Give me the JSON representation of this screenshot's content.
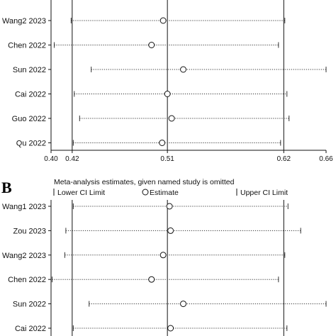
{
  "chart_data": [
    {
      "type": "scatter",
      "title": "",
      "xlabel": "",
      "ylabel": "",
      "xlim": [
        0.4,
        0.66
      ],
      "ticks": [
        "0.40",
        "0.42",
        "0.51",
        "0.62",
        "0.66"
      ],
      "ref_lines": [
        0.42,
        0.51,
        0.62
      ],
      "grid": false,
      "studies": [
        {
          "label": "Wang2 2023",
          "estimate": 0.506,
          "lower": 0.419,
          "upper": 0.621
        },
        {
          "label": "Chen 2022",
          "estimate": 0.495,
          "lower": 0.403,
          "upper": 0.615
        },
        {
          "label": "Sun 2022",
          "estimate": 0.525,
          "lower": 0.438,
          "upper": 0.66
        },
        {
          "label": "Cai 2022",
          "estimate": 0.51,
          "lower": 0.422,
          "upper": 0.623
        },
        {
          "label": "Guo 2022",
          "estimate": 0.514,
          "lower": 0.427,
          "upper": 0.625
        },
        {
          "label": "Qu 2022",
          "estimate": 0.505,
          "lower": 0.421,
          "upper": 0.617
        }
      ]
    },
    {
      "type": "scatter",
      "panel_label": "B",
      "title": "Meta-analysis estimates, given named study is omitted",
      "xlabel": "",
      "ylabel": "",
      "xlim": [
        0.4,
        0.66
      ],
      "ref_lines": [
        0.42,
        0.51,
        0.62
      ],
      "legend": {
        "placement": "top",
        "entries": [
          {
            "symbol": "line",
            "label": "Lower CI Limit"
          },
          {
            "symbol": "circle",
            "label": "Estimate"
          },
          {
            "symbol": "line",
            "label": "Upper CI Limit"
          }
        ]
      },
      "studies": [
        {
          "label": "Wang1 2023",
          "estimate": 0.512,
          "lower": 0.421,
          "upper": 0.624
        },
        {
          "label": "Zou 2023",
          "estimate": 0.513,
          "lower": 0.414,
          "upper": 0.636
        },
        {
          "label": "Wang2 2023",
          "estimate": 0.506,
          "lower": 0.413,
          "upper": 0.621
        },
        {
          "label": "Chen 2022",
          "estimate": 0.495,
          "lower": 0.401,
          "upper": 0.615
        },
        {
          "label": "Sun 2022",
          "estimate": 0.525,
          "lower": 0.436,
          "upper": 0.66
        },
        {
          "label": "Cai 2022",
          "estimate": 0.513,
          "lower": 0.421,
          "upper": 0.623
        }
      ]
    }
  ]
}
